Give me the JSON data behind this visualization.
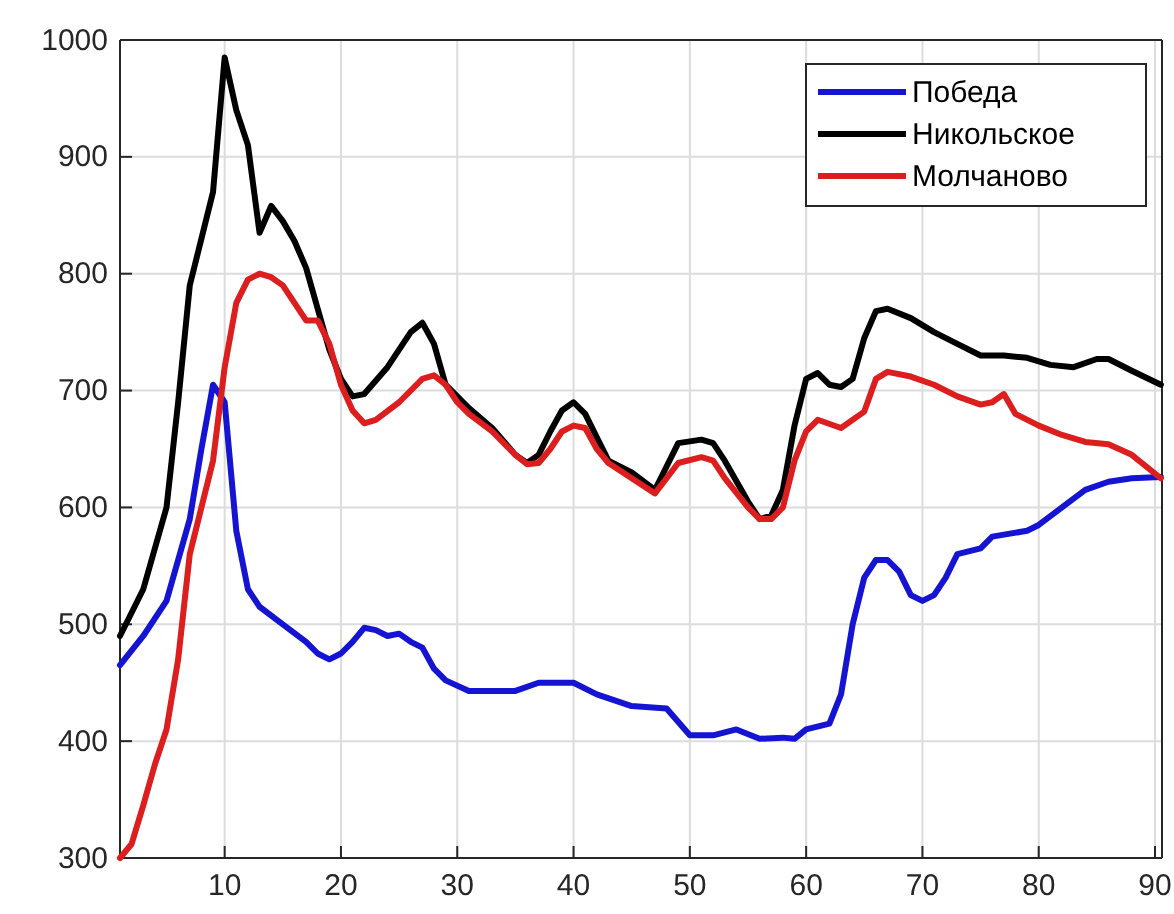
{
  "chart_data": {
    "type": "line",
    "xlim": [
      1,
      90.6
    ],
    "ylim": [
      300,
      1000
    ],
    "xticks": [
      10,
      20,
      30,
      40,
      50,
      60,
      70,
      80,
      90
    ],
    "yticks": [
      300,
      400,
      500,
      600,
      700,
      800,
      900,
      1000
    ],
    "grid": true,
    "legend": "top right",
    "line_style": "solid",
    "marker": "none",
    "series": [
      {
        "name": "Победа",
        "color": "#1414d2",
        "x": [
          1,
          3,
          5,
          7,
          8,
          9,
          10,
          11,
          12,
          13,
          15,
          17,
          18,
          19,
          20,
          21,
          22,
          23,
          24,
          25,
          26,
          27,
          28,
          29,
          31,
          35,
          37,
          40,
          42,
          45,
          48,
          50,
          52,
          54,
          56,
          58,
          59,
          60,
          62,
          63,
          64,
          65,
          66,
          67,
          68,
          69,
          70,
          71,
          72,
          73,
          75,
          76,
          79,
          80,
          82,
          84,
          86,
          88,
          90.5
        ],
        "values": [
          465,
          490,
          520,
          590,
          650,
          705,
          690,
          580,
          530,
          515,
          500,
          485,
          475,
          470,
          475,
          485,
          497,
          495,
          490,
          492,
          485,
          480,
          462,
          452,
          443,
          443,
          450,
          450,
          440,
          430,
          428,
          405,
          405,
          410,
          402,
          403,
          402,
          410,
          415,
          440,
          500,
          540,
          555,
          555,
          545,
          525,
          520,
          525,
          540,
          560,
          565,
          575,
          580,
          585,
          600,
          615,
          622,
          625,
          626
        ]
      },
      {
        "name": "Никольское",
        "color": "#000000",
        "x": [
          1,
          3,
          5,
          6,
          7,
          8,
          9,
          10,
          11,
          12,
          13,
          14,
          15,
          16,
          17,
          18,
          19,
          20,
          21,
          22,
          24,
          26,
          27,
          28,
          29,
          31,
          33,
          35,
          36,
          37,
          38,
          39,
          40,
          41,
          42,
          43,
          45,
          47,
          48,
          49,
          51,
          52,
          53,
          55,
          56,
          57,
          58,
          59,
          60,
          61,
          62,
          63,
          64,
          65,
          66,
          67,
          69,
          71,
          73,
          75,
          77,
          79,
          81,
          83,
          85,
          86,
          88,
          90.5
        ],
        "values": [
          490,
          530,
          600,
          690,
          790,
          830,
          870,
          985,
          940,
          910,
          835,
          858,
          845,
          828,
          805,
          770,
          735,
          710,
          695,
          697,
          720,
          750,
          758,
          740,
          705,
          685,
          668,
          645,
          638,
          645,
          665,
          683,
          690,
          680,
          660,
          640,
          630,
          615,
          635,
          655,
          658,
          655,
          640,
          605,
          590,
          593,
          615,
          670,
          710,
          715,
          705,
          703,
          710,
          745,
          768,
          770,
          762,
          750,
          740,
          730,
          730,
          728,
          722,
          720,
          727,
          727,
          717,
          705
        ]
      },
      {
        "name": "Молчаново",
        "color": "#dc1e1e",
        "x": [
          1,
          2,
          3,
          4,
          5,
          6,
          7,
          8,
          9,
          10,
          11,
          12,
          13,
          14,
          15,
          16,
          17,
          18,
          19,
          20,
          21,
          22,
          23,
          25,
          27,
          28,
          29,
          30,
          31,
          33,
          35,
          36,
          37,
          38,
          39,
          40,
          41,
          42,
          43,
          45,
          47,
          48,
          49,
          51,
          52,
          53,
          55,
          56,
          57,
          58,
          59,
          60,
          61,
          63,
          65,
          66,
          67,
          69,
          71,
          73,
          75,
          76,
          77,
          78,
          80,
          82,
          84,
          86,
          88,
          90.5
        ],
        "values": [
          300,
          312,
          345,
          380,
          410,
          470,
          560,
          600,
          640,
          720,
          775,
          795,
          800,
          797,
          790,
          775,
          760,
          760,
          740,
          705,
          683,
          672,
          675,
          690,
          710,
          713,
          705,
          690,
          680,
          665,
          645,
          637,
          638,
          650,
          665,
          670,
          668,
          650,
          638,
          625,
          612,
          625,
          638,
          643,
          640,
          625,
          600,
          590,
          590,
          600,
          640,
          665,
          675,
          668,
          682,
          710,
          716,
          712,
          705,
          695,
          688,
          690,
          697,
          680,
          670,
          662,
          656,
          654,
          645,
          625
        ]
      }
    ]
  }
}
